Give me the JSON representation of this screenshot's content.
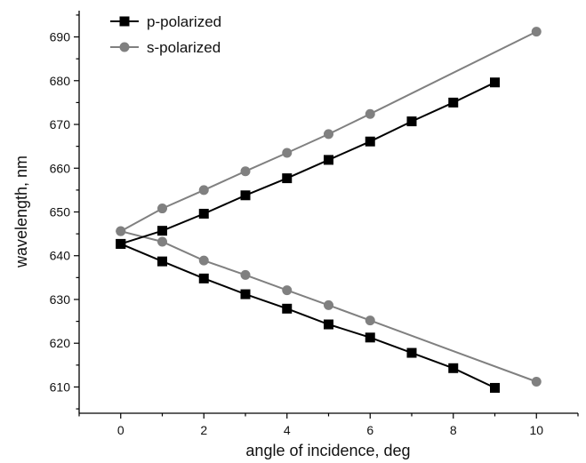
{
  "chart_data": {
    "type": "line",
    "xlabel": "angle of incidence, deg",
    "ylabel": "wavelength, nm",
    "xlim": [
      -1,
      11
    ],
    "ylim": [
      604,
      696
    ],
    "xticks": [
      0,
      2,
      4,
      6,
      8,
      10
    ],
    "yticks": [
      610,
      620,
      630,
      640,
      650,
      660,
      670,
      680,
      690
    ],
    "grid": false,
    "legend_position": "top-left",
    "series": [
      {
        "name": "p-polarized",
        "color": "#000000",
        "marker": "square",
        "branches": [
          {
            "x": [
              0,
              1,
              2,
              3,
              4,
              5,
              6,
              7,
              8,
              9
            ],
            "y": [
              642.7,
              645.7,
              649.6,
              653.8,
              657.7,
              661.9,
              666.1,
              670.7,
              675.0,
              679.6
            ]
          },
          {
            "x": [
              0,
              1,
              2,
              3,
              4,
              5,
              6,
              7,
              8,
              9
            ],
            "y": [
              642.7,
              638.7,
              634.8,
              631.2,
              627.9,
              624.3,
              621.3,
              617.8,
              614.3,
              609.8
            ]
          }
        ]
      },
      {
        "name": "s-polarized",
        "color": "#808080",
        "marker": "circle",
        "branches": [
          {
            "x": [
              0,
              1,
              2,
              3,
              4,
              5,
              6,
              10
            ],
            "y": [
              645.6,
              650.8,
              655.0,
              659.3,
              663.5,
              667.8,
              672.4,
              691.2
            ]
          },
          {
            "x": [
              0,
              1,
              2,
              3,
              4,
              5,
              6,
              10
            ],
            "y": [
              645.6,
              643.2,
              638.9,
              635.6,
              632.1,
              628.7,
              625.2,
              611.2
            ]
          }
        ]
      }
    ]
  }
}
